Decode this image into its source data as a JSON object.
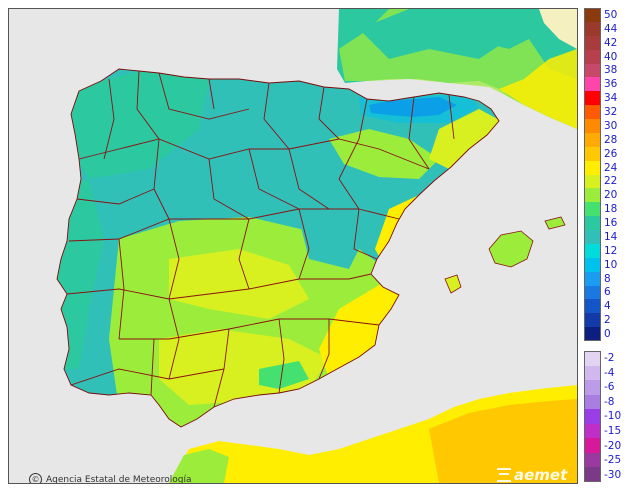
{
  "credit": {
    "copyright_symbol": "©",
    "text": "Agencia Estatal de Meteorología"
  },
  "logo": {
    "text": "aemet"
  },
  "legend": {
    "positive": [
      {
        "label": "50",
        "color": "#8b3a10"
      },
      {
        "label": "44",
        "color": "#9a3a2a"
      },
      {
        "label": "42",
        "color": "#a83c3c"
      },
      {
        "label": "40",
        "color": "#b8404e"
      },
      {
        "label": "38",
        "color": "#c8486a"
      },
      {
        "label": "36",
        "color": "#ff44aa"
      },
      {
        "label": "34",
        "color": "#ff0000"
      },
      {
        "label": "32",
        "color": "#ff5a00"
      },
      {
        "label": "30",
        "color": "#ff8a00"
      },
      {
        "label": "28",
        "color": "#ffaa00"
      },
      {
        "label": "26",
        "color": "#ffc800"
      },
      {
        "label": "24",
        "color": "#ffee00"
      },
      {
        "label": "22",
        "color": "#d8f020"
      },
      {
        "label": "20",
        "color": "#9cec3c"
      },
      {
        "label": "18",
        "color": "#44e070"
      },
      {
        "label": "16",
        "color": "#2cc8a0"
      },
      {
        "label": "14",
        "color": "#30c0b8"
      },
      {
        "label": "12",
        "color": "#00dcdc"
      },
      {
        "label": "10",
        "color": "#00c0ee"
      },
      {
        "label": "8",
        "color": "#1a9cf0"
      },
      {
        "label": "6",
        "color": "#1a78e0"
      },
      {
        "label": "4",
        "color": "#1456c8"
      },
      {
        "label": "2",
        "color": "#123aa8"
      },
      {
        "label": "0",
        "color": "#0c1e80"
      }
    ],
    "negative": [
      {
        "label": "-2",
        "color": "#e4d4f4"
      },
      {
        "label": "-4",
        "color": "#d0b8ee"
      },
      {
        "label": "-6",
        "color": "#bc9ce8"
      },
      {
        "label": "-8",
        "color": "#a87ee2"
      },
      {
        "label": "-10",
        "color": "#9a3ee8"
      },
      {
        "label": "-15",
        "color": "#c02ec8"
      },
      {
        "label": "-20",
        "color": "#d8189a"
      },
      {
        "label": "-25",
        "color": "#9a3aa0"
      },
      {
        "label": "-30",
        "color": "#7a3a88"
      }
    ]
  }
}
